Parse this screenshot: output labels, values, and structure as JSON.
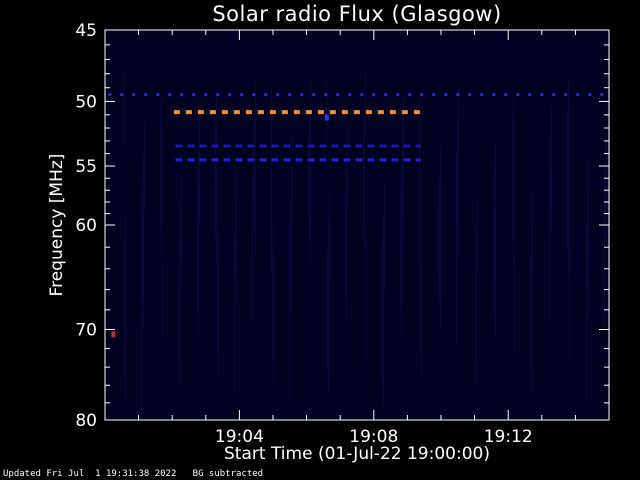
{
  "footer": {
    "updated": "Updated Fri Jul  1 19:31:38 2022",
    "note": "BG subtracted"
  },
  "chart_data": {
    "type": "heatmap",
    "title": "Solar radio Flux (Glasgow)",
    "xlabel": "Start Time (01-Jul-22 19:00:00)",
    "ylabel": "Frequency [MHz]",
    "xlim": [
      0,
      15
    ],
    "ylim_log": [
      45,
      80
    ],
    "x_unit": "minutes after 19:00:00",
    "x_ticks": [
      {
        "value": 4,
        "label": "19:04"
      },
      {
        "value": 8,
        "label": "19:08"
      },
      {
        "value": 12,
        "label": "19:12"
      }
    ],
    "y_ticks": [
      {
        "value": 45,
        "label": "45"
      },
      {
        "value": 50,
        "label": "50"
      },
      {
        "value": 55,
        "label": "55"
      },
      {
        "value": 60,
        "label": "60"
      },
      {
        "value": 70,
        "label": "70"
      },
      {
        "value": 80,
        "label": "80"
      }
    ],
    "background_color": "#000020",
    "features": [
      {
        "freq": 49.5,
        "x_start": 0.1,
        "x_end": 14.9,
        "color": "#2a2ad8",
        "style": "dashed"
      },
      {
        "freq": 50.8,
        "x_start": 2.05,
        "x_end": 9.4,
        "color": "#f0903c",
        "style": "dashed"
      },
      {
        "freq": 53.4,
        "x_start": 2.1,
        "x_end": 9.4,
        "color": "#1a1ab0",
        "style": "dashed"
      },
      {
        "freq": 54.5,
        "x_start": 2.1,
        "x_end": 9.4,
        "color": "#2020e0",
        "style": "dashed"
      }
    ],
    "spots": [
      {
        "x": 6.6,
        "freq": 51.2,
        "color": "#3030ff"
      },
      {
        "x": 0.25,
        "freq": 70.5,
        "color": "#c03030"
      }
    ]
  }
}
